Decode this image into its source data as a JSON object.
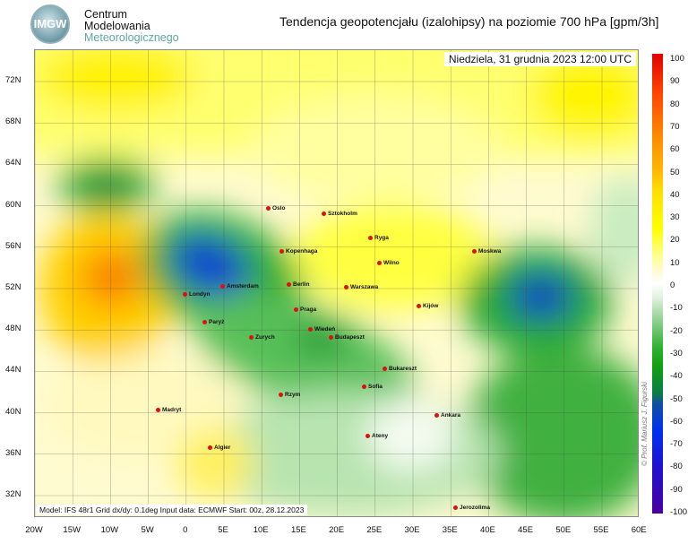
{
  "header": {
    "logo_text": "IMGW",
    "org_line1": "Centrum",
    "org_line2": "Modelowania",
    "org_line3": "Meteorologicznego",
    "title": "Tendencja geopotencjału (izalohipsy) na poziomie 700 hPa  [gpm/3h]"
  },
  "map": {
    "date": "Niedziela, 31 grudnia 2023 12:00 UTC",
    "info": "Model: IFS 48r1  Grid dx/dy: 0.1deg  Input data: ECMWF  Start: 00z, 28.12.2023",
    "credit": "© Prof. Mariusz J. Figurski",
    "lat_labels": [
      "72N",
      "68N",
      "64N",
      "60N",
      "56N",
      "52N",
      "48N",
      "44N",
      "40N",
      "36N",
      "32N"
    ],
    "lon_labels": [
      "20W",
      "15W",
      "10W",
      "5W",
      "0",
      "5E",
      "10E",
      "15E",
      "20E",
      "25E",
      "30E",
      "35E",
      "40E",
      "45E",
      "50E",
      "55E",
      "60E"
    ],
    "cities": [
      "Oslo",
      "Sztokholm",
      "Ryga",
      "Wilno",
      "Kopenhaga",
      "Amsterdam",
      "Londyn",
      "Berlin",
      "Warszawa",
      "Moskwa",
      "Kijów",
      "Praga",
      "Paryż",
      "Wiedeń",
      "Budapeszt",
      "Zurych",
      "Bukareszt",
      "Sofia",
      "Rzym",
      "Madryt",
      "Ankara",
      "Ateny",
      "Algier",
      "Jerozolima"
    ]
  },
  "colorbar": {
    "labels": [
      "100",
      "90",
      "80",
      "70",
      "60",
      "50",
      "40",
      "30",
      "20",
      "10",
      "0",
      "-10",
      "-20",
      "-30",
      "-40",
      "-50",
      "-60",
      "-70",
      "-80",
      "-90",
      "-100"
    ],
    "colors": {
      "max": "#e00000",
      "zero": "#ffffff",
      "min": "#4a00a0"
    }
  }
}
